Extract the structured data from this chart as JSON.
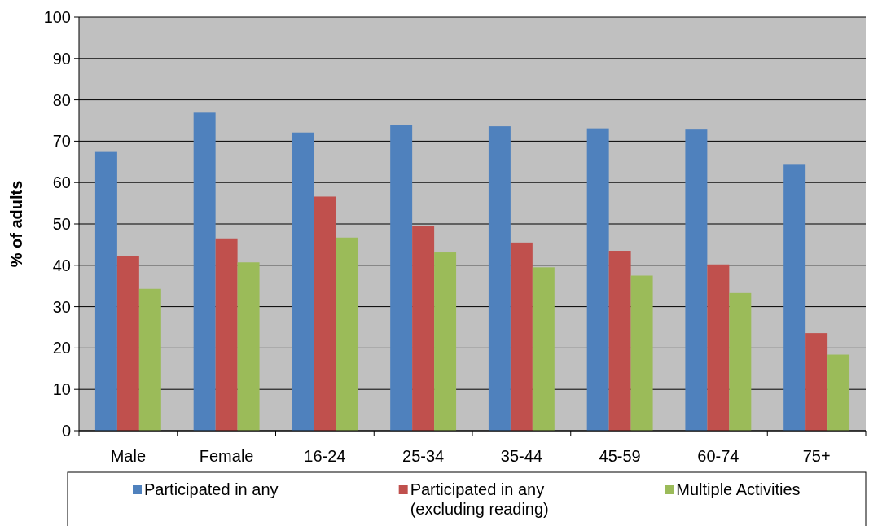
{
  "chart_data": {
    "type": "bar",
    "ylabel": "% of adults",
    "categories": [
      "Male",
      "Female",
      "16-24",
      "25-34",
      "35-44",
      "45-59",
      "60-74",
      "75+"
    ],
    "series": [
      {
        "name": "Participated in any",
        "color": "#4f81bd",
        "values": [
          67.4,
          76.9,
          72.1,
          74.0,
          73.6,
          73.1,
          72.8,
          64.3
        ]
      },
      {
        "name": "Participated in any (excluding reading)",
        "color": "#c0504d",
        "values": [
          42.2,
          46.5,
          56.6,
          49.6,
          45.5,
          43.5,
          40.2,
          23.6
        ]
      },
      {
        "name": "Multiple Activities",
        "color": "#9bbb59",
        "values": [
          34.3,
          40.7,
          46.7,
          43.1,
          39.5,
          37.5,
          33.3,
          18.4
        ]
      }
    ],
    "ylim": [
      0,
      100
    ],
    "yticks": [
      0,
      10,
      20,
      30,
      40,
      50,
      60,
      70,
      80,
      90,
      100
    ],
    "grid": "y",
    "legend": "bottom"
  }
}
